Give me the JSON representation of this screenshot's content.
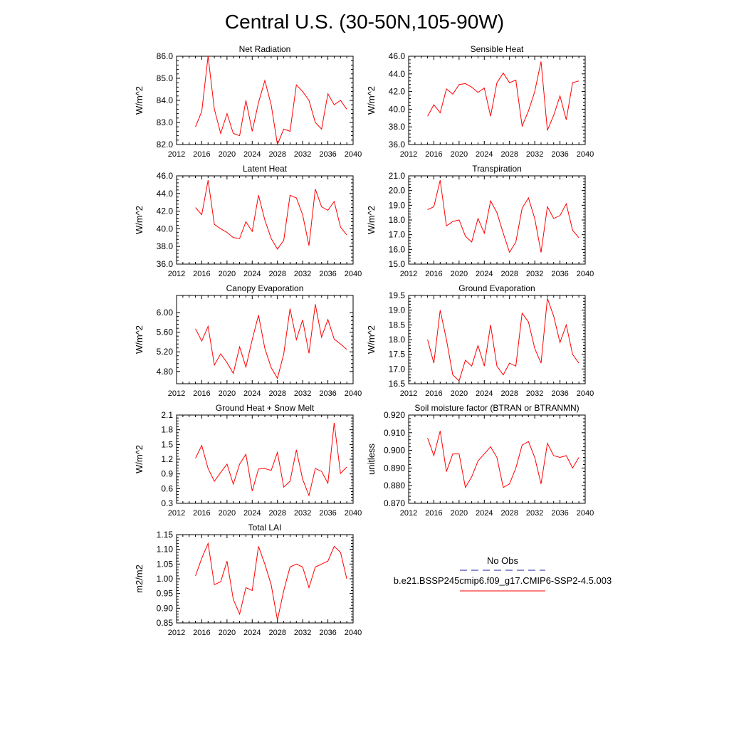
{
  "figure_title": "Central U.S. (30-50N,105-90W)",
  "legend": {
    "obs_label": "No Obs",
    "obs_color": "#1c1c9c",
    "model_label": "b.e21.BSSP245cmip6.f09_g17.CMIP6-SSP2-4.5.003",
    "model_color": "#ff0000"
  },
  "chart_data": [
    {
      "type": "line",
      "title": "Net Radiation",
      "ylabel": "W/m^2",
      "xlim": [
        2012,
        2040
      ],
      "ylim": [
        82.0,
        86.0
      ],
      "xticks": [
        "2012",
        "2016",
        "2020",
        "2024",
        "2028",
        "2032",
        "2036",
        "2040"
      ],
      "yticks": [
        "82.0",
        "83.0",
        "84.0",
        "85.0",
        "86.0"
      ],
      "series": [
        {
          "x": [
            2015,
            2016,
            2017,
            2018,
            2019,
            2020,
            2021,
            2022,
            2023,
            2024,
            2025,
            2026,
            2027,
            2028,
            2029,
            2030,
            2031,
            2032,
            2033,
            2034,
            2035,
            2036,
            2037,
            2038,
            2039
          ],
          "values": [
            82.8,
            83.5,
            86.0,
            83.6,
            82.5,
            83.4,
            82.5,
            82.4,
            84.0,
            82.6,
            83.9,
            84.9,
            83.8,
            82.0,
            82.7,
            82.6,
            84.7,
            84.4,
            84.0,
            83.0,
            82.7,
            84.3,
            83.8,
            84.0,
            83.6
          ]
        }
      ]
    },
    {
      "type": "line",
      "title": "Sensible Heat",
      "ylabel": "W/m^2",
      "xlim": [
        2012,
        2040
      ],
      "ylim": [
        36.0,
        46.0
      ],
      "xticks": [
        "2012",
        "2016",
        "2020",
        "2024",
        "2028",
        "2032",
        "2036",
        "2040"
      ],
      "yticks": [
        "36.0",
        "38.0",
        "40.0",
        "42.0",
        "44.0",
        "46.0"
      ],
      "series": [
        {
          "x": [
            2015,
            2016,
            2017,
            2018,
            2019,
            2020,
            2021,
            2022,
            2023,
            2024,
            2025,
            2026,
            2027,
            2028,
            2029,
            2030,
            2031,
            2032,
            2033,
            2034,
            2035,
            2036,
            2037,
            2038,
            2039
          ],
          "values": [
            39.2,
            40.5,
            39.6,
            42.3,
            41.7,
            42.8,
            42.9,
            42.5,
            41.9,
            42.4,
            39.2,
            43.0,
            44.1,
            43.0,
            43.3,
            38.1,
            39.8,
            42.0,
            45.4,
            37.6,
            39.3,
            41.5,
            38.8,
            43.0,
            43.2
          ]
        }
      ]
    },
    {
      "type": "line",
      "title": "Latent Heat",
      "ylabel": "W/m^2",
      "xlim": [
        2012,
        2040
      ],
      "ylim": [
        36.0,
        46.0
      ],
      "xticks": [
        "2012",
        "2016",
        "2020",
        "2024",
        "2028",
        "2032",
        "2036",
        "2040"
      ],
      "yticks": [
        "36.0",
        "38.0",
        "40.0",
        "42.0",
        "44.0",
        "46.0"
      ],
      "series": [
        {
          "x": [
            2015,
            2016,
            2017,
            2018,
            2019,
            2020,
            2021,
            2022,
            2023,
            2024,
            2025,
            2026,
            2027,
            2028,
            2029,
            2030,
            2031,
            2032,
            2033,
            2034,
            2035,
            2036,
            2037,
            2038,
            2039
          ],
          "values": [
            42.4,
            41.6,
            45.5,
            40.5,
            40.0,
            39.6,
            39.0,
            38.9,
            40.8,
            39.7,
            43.8,
            41.0,
            38.9,
            37.7,
            38.7,
            43.8,
            43.5,
            41.6,
            38.1,
            44.5,
            42.5,
            42.1,
            43.1,
            40.2,
            39.3
          ]
        }
      ]
    },
    {
      "type": "line",
      "title": "Transpiration",
      "ylabel": "W/m^2",
      "xlim": [
        2012,
        2040
      ],
      "ylim": [
        15.0,
        21.0
      ],
      "xticks": [
        "2012",
        "2016",
        "2020",
        "2024",
        "2028",
        "2032",
        "2036",
        "2040"
      ],
      "yticks": [
        "15.0",
        "16.0",
        "17.0",
        "18.0",
        "19.0",
        "20.0",
        "21.0"
      ],
      "series": [
        {
          "x": [
            2015,
            2016,
            2017,
            2018,
            2019,
            2020,
            2021,
            2022,
            2023,
            2024,
            2025,
            2026,
            2027,
            2028,
            2029,
            2030,
            2031,
            2032,
            2033,
            2034,
            2035,
            2036,
            2037,
            2038,
            2039
          ],
          "values": [
            18.7,
            18.9,
            20.7,
            17.6,
            17.9,
            18.0,
            16.9,
            16.5,
            18.1,
            17.1,
            19.3,
            18.5,
            17.1,
            15.8,
            16.5,
            18.8,
            19.5,
            18.1,
            15.8,
            18.9,
            18.1,
            18.3,
            19.1,
            17.3,
            16.8
          ]
        }
      ]
    },
    {
      "type": "line",
      "title": "Canopy Evaporation",
      "ylabel": "W/m^2",
      "xlim": [
        2012,
        2040
      ],
      "ylim": [
        4.55,
        6.35
      ],
      "xticks": [
        "2012",
        "2016",
        "2020",
        "2024",
        "2028",
        "2032",
        "2036",
        "2040"
      ],
      "yticks": [
        "4.80",
        "5.20",
        "5.60",
        "6.00"
      ],
      "ytick_values": [
        4.8,
        5.2,
        5.6,
        6.0
      ],
      "series": [
        {
          "x": [
            2015,
            2016,
            2017,
            2018,
            2019,
            2020,
            2021,
            2022,
            2023,
            2024,
            2025,
            2026,
            2027,
            2028,
            2029,
            2030,
            2031,
            2032,
            2033,
            2034,
            2035,
            2036,
            2037,
            2038,
            2039
          ],
          "values": [
            5.67,
            5.42,
            5.72,
            4.93,
            5.16,
            4.98,
            4.76,
            5.3,
            4.89,
            5.45,
            5.95,
            5.27,
            4.88,
            4.66,
            5.16,
            6.08,
            5.45,
            5.85,
            5.17,
            6.17,
            5.5,
            5.86,
            5.46,
            5.36,
            5.25
          ]
        }
      ]
    },
    {
      "type": "line",
      "title": "Ground Evaporation",
      "ylabel": "W/m^2",
      "xlim": [
        2012,
        2040
      ],
      "ylim": [
        16.5,
        19.5
      ],
      "xticks": [
        "2012",
        "2016",
        "2020",
        "2024",
        "2028",
        "2032",
        "2036",
        "2040"
      ],
      "yticks": [
        "16.5",
        "17.0",
        "17.5",
        "18.0",
        "18.5",
        "19.0",
        "19.5"
      ],
      "series": [
        {
          "x": [
            2015,
            2016,
            2017,
            2018,
            2019,
            2020,
            2021,
            2022,
            2023,
            2024,
            2025,
            2026,
            2027,
            2028,
            2029,
            2030,
            2031,
            2032,
            2033,
            2034,
            2035,
            2036,
            2037,
            2038,
            2039
          ],
          "values": [
            18.0,
            17.2,
            19.0,
            18.0,
            16.8,
            16.6,
            17.3,
            17.1,
            17.8,
            17.1,
            18.5,
            17.1,
            16.8,
            17.2,
            17.1,
            18.9,
            18.6,
            17.7,
            17.2,
            19.4,
            18.8,
            17.9,
            18.5,
            17.5,
            17.2
          ]
        }
      ]
    },
    {
      "type": "line",
      "title": "Ground Heat + Snow Melt",
      "ylabel": "W/m^2",
      "xlim": [
        2012,
        2040
      ],
      "ylim": [
        0.3,
        2.1
      ],
      "xticks": [
        "2012",
        "2016",
        "2020",
        "2024",
        "2028",
        "2032",
        "2036",
        "2040"
      ],
      "yticks": [
        "0.3",
        "0.6",
        "0.9",
        "1.2",
        "1.5",
        "1.8",
        "2.1"
      ],
      "series": [
        {
          "x": [
            2015,
            2016,
            2017,
            2018,
            2019,
            2020,
            2021,
            2022,
            2023,
            2024,
            2025,
            2026,
            2027,
            2028,
            2029,
            2030,
            2031,
            2032,
            2033,
            2034,
            2035,
            2036,
            2037,
            2038,
            2039
          ],
          "values": [
            1.22,
            1.48,
            1.01,
            0.75,
            0.93,
            1.1,
            0.69,
            1.1,
            1.3,
            0.55,
            1.0,
            1.01,
            0.97,
            1.34,
            0.63,
            0.75,
            1.39,
            0.79,
            0.46,
            1.01,
            0.95,
            0.71,
            1.94,
            0.91,
            1.04
          ]
        }
      ]
    },
    {
      "type": "line",
      "title": "Soil moisture factor (BTRAN or BTRANMN)",
      "ylabel": "unitless",
      "xlim": [
        2012,
        2040
      ],
      "ylim": [
        0.87,
        0.92
      ],
      "xticks": [
        "2012",
        "2016",
        "2020",
        "2024",
        "2028",
        "2032",
        "2036",
        "2040"
      ],
      "yticks": [
        "0.870",
        "0.880",
        "0.890",
        "0.900",
        "0.910",
        "0.920"
      ],
      "series": [
        {
          "x": [
            2015,
            2016,
            2017,
            2018,
            2019,
            2020,
            2021,
            2022,
            2023,
            2024,
            2025,
            2026,
            2027,
            2028,
            2029,
            2030,
            2031,
            2032,
            2033,
            2034,
            2035,
            2036,
            2037,
            2038,
            2039
          ],
          "values": [
            0.907,
            0.897,
            0.911,
            0.888,
            0.898,
            0.898,
            0.879,
            0.885,
            0.894,
            0.898,
            0.902,
            0.896,
            0.879,
            0.881,
            0.89,
            0.903,
            0.905,
            0.896,
            0.881,
            0.904,
            0.897,
            0.896,
            0.897,
            0.89,
            0.896
          ]
        }
      ]
    },
    {
      "type": "line",
      "title": "Total LAI",
      "ylabel": "m2/m2",
      "xlim": [
        2012,
        2040
      ],
      "ylim": [
        0.85,
        1.15
      ],
      "xticks": [
        "2012",
        "2016",
        "2020",
        "2024",
        "2028",
        "2032",
        "2036",
        "2040"
      ],
      "yticks": [
        "0.85",
        "0.90",
        "0.95",
        "1.00",
        "1.05",
        "1.10",
        "1.15"
      ],
      "series": [
        {
          "x": [
            2015,
            2016,
            2017,
            2018,
            2019,
            2020,
            2021,
            2022,
            2023,
            2024,
            2025,
            2026,
            2027,
            2028,
            2029,
            2030,
            2031,
            2032,
            2033,
            2034,
            2035,
            2036,
            2037,
            2038,
            2039
          ],
          "values": [
            1.01,
            1.07,
            1.12,
            0.98,
            0.99,
            1.06,
            0.93,
            0.88,
            0.97,
            0.96,
            1.11,
            1.05,
            0.98,
            0.86,
            0.96,
            1.04,
            1.05,
            1.04,
            0.97,
            1.04,
            1.05,
            1.06,
            1.11,
            1.09,
            1.0
          ]
        }
      ]
    }
  ]
}
